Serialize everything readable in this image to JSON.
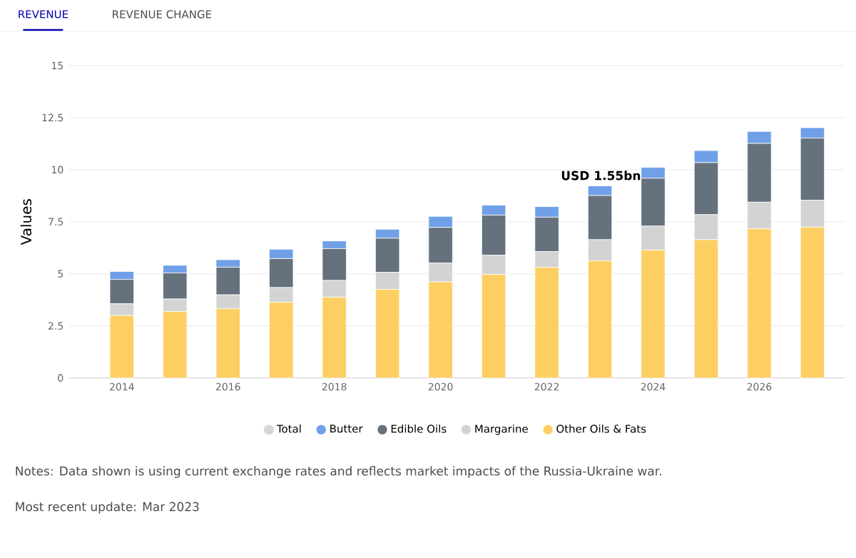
{
  "chart_data": {
    "type": "bar",
    "stacked": true,
    "x": [
      2014,
      2015,
      2016,
      2017,
      2018,
      2019,
      2020,
      2021,
      2022,
      2023,
      2024,
      2025,
      2026,
      2027
    ],
    "series": [
      {
        "name": "Other Oils & Fats",
        "color": "#fdcf63",
        "values": [
          3.0,
          3.19,
          3.33,
          3.63,
          3.88,
          4.25,
          4.61,
          4.97,
          5.31,
          5.63,
          6.14,
          6.64,
          7.17,
          7.24
        ]
      },
      {
        "name": "Margarine",
        "color": "#d3d3d3",
        "values": [
          0.56,
          0.6,
          0.66,
          0.71,
          0.8,
          0.82,
          0.91,
          0.92,
          0.76,
          1.01,
          1.15,
          1.2,
          1.27,
          1.29
        ]
      },
      {
        "name": "Edible Oils",
        "color": "#66717e",
        "values": [
          1.17,
          1.25,
          1.33,
          1.39,
          1.53,
          1.64,
          1.71,
          1.93,
          1.65,
          2.12,
          2.3,
          2.5,
          2.82,
          2.99
        ]
      },
      {
        "name": "Butter",
        "color": "#6fa0e8",
        "values": [
          0.38,
          0.37,
          0.36,
          0.45,
          0.37,
          0.43,
          0.53,
          0.48,
          0.51,
          0.46,
          0.52,
          0.58,
          0.58,
          0.5
        ]
      },
      {
        "name": "Total",
        "color": "#d6d6d6",
        "values": [
          null,
          null,
          null,
          null,
          null,
          null,
          null,
          null,
          null,
          null,
          null,
          null,
          null,
          null
        ]
      }
    ],
    "ylabel": "Values",
    "xlim": [
      2013,
      2027.6
    ],
    "xticks": [
      2014,
      2016,
      2018,
      2020,
      2022,
      2024,
      2026
    ],
    "ylim": [
      0,
      15
    ],
    "yticks": [
      0,
      2.5,
      5,
      7.5,
      10,
      12.5,
      15
    ],
    "grid": "y",
    "legend": "bottom",
    "annotations": [
      "REVENUE",
      "REVENUE CHANGE",
      "USD 1.55bn",
      "Notes: Data shown is using current exchange rates and reflects market impacts of the Russia-Ukraine war.",
      "Most recent update: Mar 2023"
    ]
  }
}
